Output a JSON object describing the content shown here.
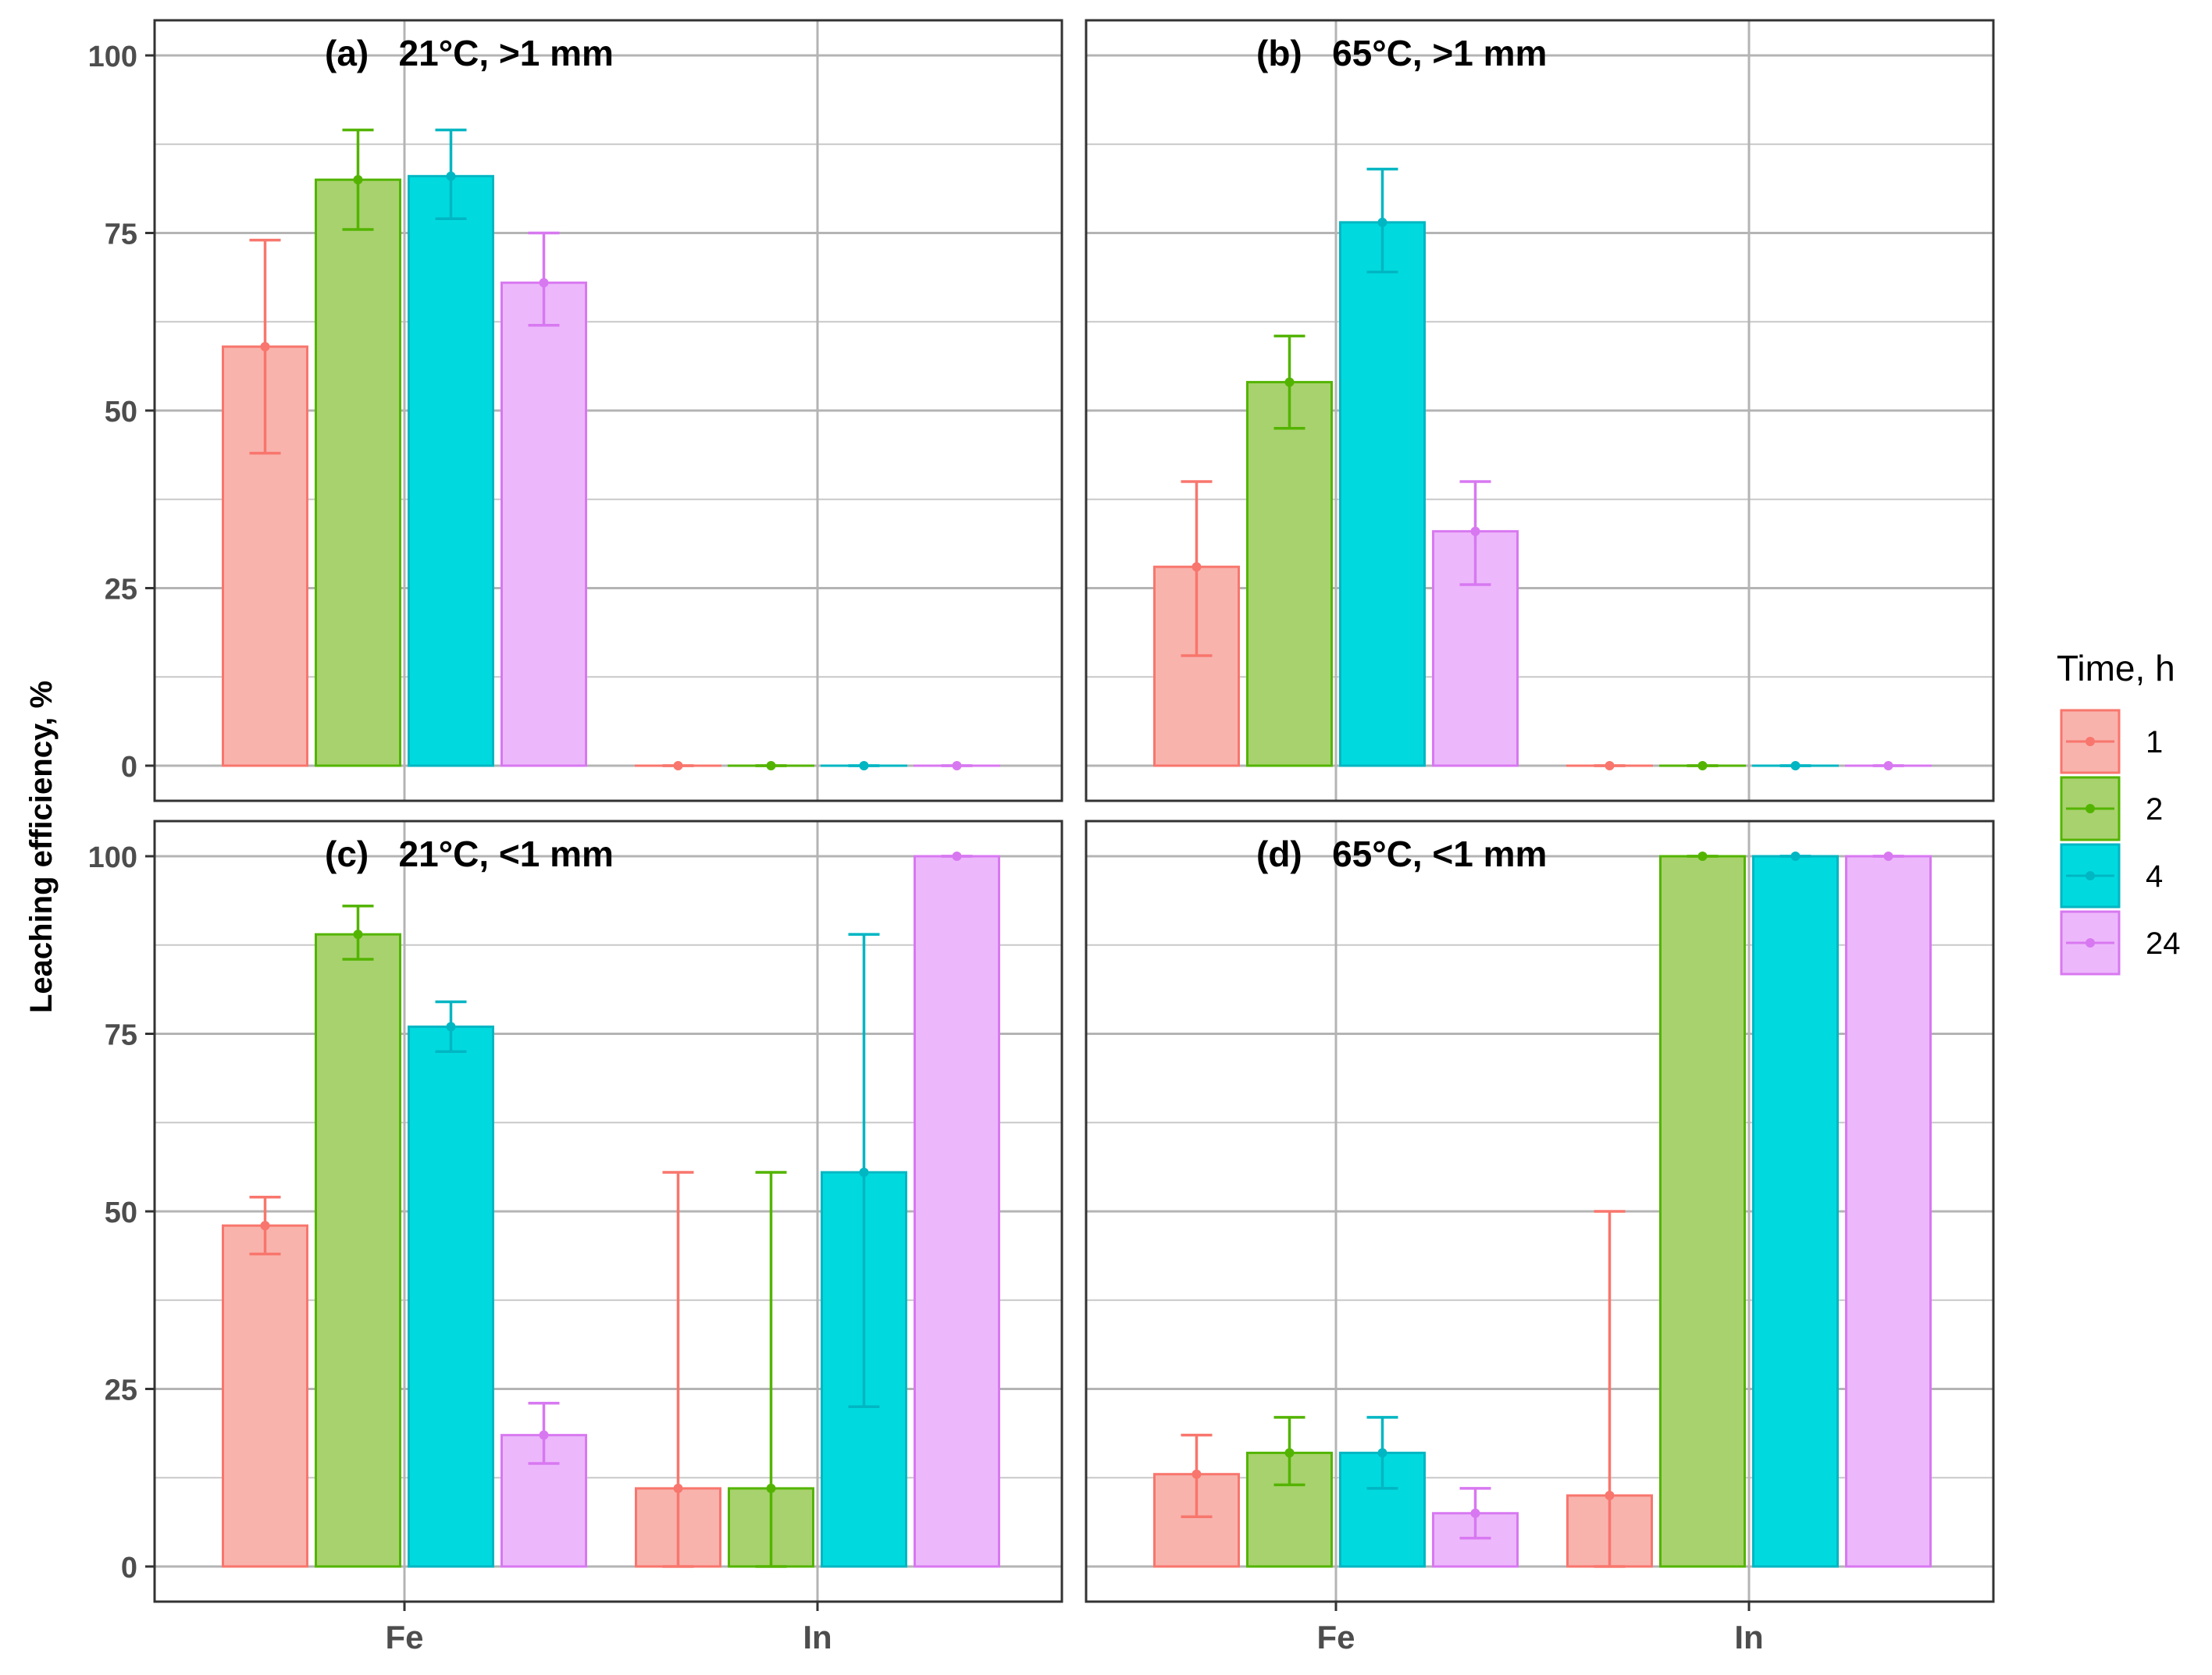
{
  "figure": {
    "ylabel": "Leaching efficiency, %",
    "categories": [
      "Fe",
      "In"
    ],
    "ylim": [
      0,
      100
    ],
    "yticks": [
      0,
      25,
      50,
      75,
      100
    ],
    "grid": true,
    "legend": {
      "title": "Time, h",
      "placement": "right",
      "entries": [
        {
          "label": "1",
          "fill": "#f8b3ad",
          "stroke": "#f8766d"
        },
        {
          "label": "2",
          "fill": "#a8d26e",
          "stroke": "#53b400"
        },
        {
          "label": "4",
          "fill": "#00dadf",
          "stroke": "#00b6c2"
        },
        {
          "label": "24",
          "fill": "#ecb8fb",
          "stroke": "#d878f1"
        }
      ]
    }
  },
  "chart_data": [
    {
      "type": "bar",
      "title": "(a)   21°C, >1 mm",
      "categories": [
        "Fe",
        "In"
      ],
      "series": [
        {
          "name": "1",
          "values": [
            59,
            0
          ],
          "err_low": [
            44,
            0
          ],
          "err_high": [
            74,
            0
          ]
        },
        {
          "name": "2",
          "values": [
            82.5,
            0
          ],
          "err_low": [
            75.5,
            0
          ],
          "err_high": [
            89.5,
            0
          ]
        },
        {
          "name": "4",
          "values": [
            83,
            0
          ],
          "err_low": [
            77,
            0
          ],
          "err_high": [
            89.5,
            0
          ]
        },
        {
          "name": "24",
          "values": [
            68,
            0
          ],
          "err_low": [
            62,
            0
          ],
          "err_high": [
            75,
            0
          ]
        }
      ],
      "ylim": [
        0,
        100
      ]
    },
    {
      "type": "bar",
      "title": "(b)   65°C, >1 mm",
      "categories": [
        "Fe",
        "In"
      ],
      "series": [
        {
          "name": "1",
          "values": [
            28,
            0
          ],
          "err_low": [
            15.5,
            0
          ],
          "err_high": [
            40,
            0
          ]
        },
        {
          "name": "2",
          "values": [
            54,
            0
          ],
          "err_low": [
            47.5,
            0
          ],
          "err_high": [
            60.5,
            0
          ]
        },
        {
          "name": "4",
          "values": [
            76.5,
            0
          ],
          "err_low": [
            69.5,
            0
          ],
          "err_high": [
            84,
            0
          ]
        },
        {
          "name": "24",
          "values": [
            33,
            0
          ],
          "err_low": [
            25.5,
            0
          ],
          "err_high": [
            40,
            0
          ]
        }
      ],
      "ylim": [
        0,
        100
      ]
    },
    {
      "type": "bar",
      "title": "(c)   21°C, <1 mm",
      "categories": [
        "Fe",
        "In"
      ],
      "series": [
        {
          "name": "1",
          "values": [
            48,
            11
          ],
          "err_low": [
            44,
            0
          ],
          "err_high": [
            52,
            55.5
          ]
        },
        {
          "name": "2",
          "values": [
            89,
            11
          ],
          "err_low": [
            85.5,
            0
          ],
          "err_high": [
            93,
            55.5
          ]
        },
        {
          "name": "4",
          "values": [
            76,
            55.5
          ],
          "err_low": [
            72.5,
            22.5
          ],
          "err_high": [
            79.5,
            89
          ]
        },
        {
          "name": "24",
          "values": [
            18.5,
            100
          ],
          "err_low": [
            14.5,
            100
          ],
          "err_high": [
            23,
            100
          ]
        }
      ],
      "ylim": [
        0,
        100
      ]
    },
    {
      "type": "bar",
      "title": "(d)   65°C, <1 mm",
      "categories": [
        "Fe",
        "In"
      ],
      "series": [
        {
          "name": "1",
          "values": [
            13,
            10
          ],
          "err_low": [
            7,
            0
          ],
          "err_high": [
            18.5,
            50
          ]
        },
        {
          "name": "2",
          "values": [
            16,
            100
          ],
          "err_low": [
            11.5,
            100
          ],
          "err_high": [
            21,
            100
          ]
        },
        {
          "name": "4",
          "values": [
            16,
            100
          ],
          "err_low": [
            11,
            100
          ],
          "err_high": [
            21,
            100
          ]
        },
        {
          "name": "24",
          "values": [
            7.5,
            100
          ],
          "err_low": [
            4,
            100
          ],
          "err_high": [
            11,
            100
          ]
        }
      ],
      "ylim": [
        0,
        100
      ]
    }
  ]
}
